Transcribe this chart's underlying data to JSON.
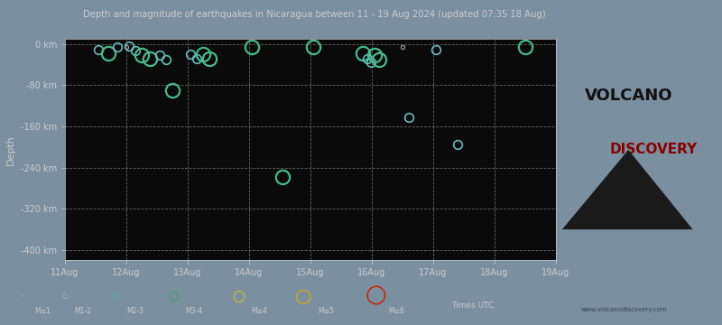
{
  "title": "Depth and magnitude of earthquakes in Nicaragua between 11 - 19 Aug 2024 (updated 07:35 18 Aug)",
  "bg_color": "#0a0a0a",
  "outer_bg": "#7a8fa0",
  "ylabel": "Depth",
  "xlabel_ticks": [
    "11Aug",
    "12Aug",
    "13Aug",
    "14Aug",
    "15Aug",
    "16Aug",
    "17Aug",
    "18Aug",
    "19Aug"
  ],
  "ytick_labels": [
    "0 km",
    "-80 km",
    "-160 km",
    "-240 km",
    "-320 km",
    "-400 km"
  ],
  "ytick_values": [
    0,
    -80,
    -160,
    -240,
    -320,
    -400
  ],
  "ylim": [
    -420,
    10
  ],
  "xlim_days": [
    0,
    8
  ],
  "grid_color": "#666666",
  "tick_color": "#cccccc",
  "title_color": "#cccccc",
  "earthquakes": [
    {
      "day": 0.55,
      "depth": -10,
      "mag": 2,
      "color": "#66bbbb"
    },
    {
      "day": 0.7,
      "depth": -18,
      "mag": 3,
      "color": "#44bb88"
    },
    {
      "day": 0.85,
      "depth": -5,
      "mag": 2,
      "color": "#66bbbb"
    },
    {
      "day": 1.0,
      "depth": -5,
      "mag": 1,
      "color": "#aaaaaa"
    },
    {
      "day": 1.05,
      "depth": -3,
      "mag": 2,
      "color": "#66bbbb"
    },
    {
      "day": 1.15,
      "depth": -12,
      "mag": 2,
      "color": "#66bbbb"
    },
    {
      "day": 1.25,
      "depth": -22,
      "mag": 3,
      "color": "#44bb88"
    },
    {
      "day": 1.38,
      "depth": -28,
      "mag": 3,
      "color": "#44bb88"
    },
    {
      "day": 1.55,
      "depth": -22,
      "mag": 2,
      "color": "#66bbbb"
    },
    {
      "day": 1.65,
      "depth": -30,
      "mag": 2,
      "color": "#66bbbb"
    },
    {
      "day": 1.75,
      "depth": -90,
      "mag": 3,
      "color": "#44bb88"
    },
    {
      "day": 2.05,
      "depth": -20,
      "mag": 2,
      "color": "#66bbbb"
    },
    {
      "day": 2.15,
      "depth": -28,
      "mag": 2,
      "color": "#66bbbb"
    },
    {
      "day": 2.25,
      "depth": -20,
      "mag": 3,
      "color": "#44bb88"
    },
    {
      "day": 2.35,
      "depth": -28,
      "mag": 3,
      "color": "#44bb88"
    },
    {
      "day": 3.05,
      "depth": -5,
      "mag": 3,
      "color": "#44bb88"
    },
    {
      "day": 3.55,
      "depth": -258,
      "mag": 3,
      "color": "#44bb88"
    },
    {
      "day": 4.05,
      "depth": -5,
      "mag": 3,
      "color": "#44bb88"
    },
    {
      "day": 4.85,
      "depth": -18,
      "mag": 3,
      "color": "#44bb88"
    },
    {
      "day": 4.92,
      "depth": -28,
      "mag": 2,
      "color": "#66bbbb"
    },
    {
      "day": 4.98,
      "depth": -35,
      "mag": 2,
      "color": "#66bbbb"
    },
    {
      "day": 5.05,
      "depth": -22,
      "mag": 3,
      "color": "#44bb88"
    },
    {
      "day": 5.12,
      "depth": -30,
      "mag": 3,
      "color": "#44bb88"
    },
    {
      "day": 5.5,
      "depth": -5,
      "mag": 1,
      "color": "#aaaaaa"
    },
    {
      "day": 5.6,
      "depth": -142,
      "mag": 2,
      "color": "#66bbbb"
    },
    {
      "day": 6.05,
      "depth": -10,
      "mag": 2,
      "color": "#66bbbb"
    },
    {
      "day": 6.4,
      "depth": -195,
      "mag": 2,
      "color": "#66bbbb"
    },
    {
      "day": 7.5,
      "depth": -5,
      "mag": 3,
      "color": "#44bb88"
    }
  ],
  "legend_items": [
    {
      "label": "M<1",
      "color": "#aaaaaa",
      "ms": 4,
      "lw": 0.8
    },
    {
      "label": "M1-2",
      "color": "#aacccc",
      "ms": 7,
      "lw": 1.0
    },
    {
      "label": "M2-3",
      "color": "#44bbcc",
      "ms": 11,
      "lw": 1.5
    },
    {
      "label": "M3-4",
      "color": "#22aa44",
      "ms": 14,
      "lw": 2.0
    },
    {
      "label": "M>4",
      "color": "#ddcc00",
      "ms": 17,
      "lw": 2.5
    },
    {
      "label": "M>5",
      "color": "#ddaa00",
      "ms": 22,
      "lw": 3.0
    },
    {
      "label": "M>6",
      "color": "#cc2200",
      "ms": 28,
      "lw": 3.5
    }
  ],
  "watermark": "www.volcanodiscovery.com",
  "times_label": "Times UTC"
}
